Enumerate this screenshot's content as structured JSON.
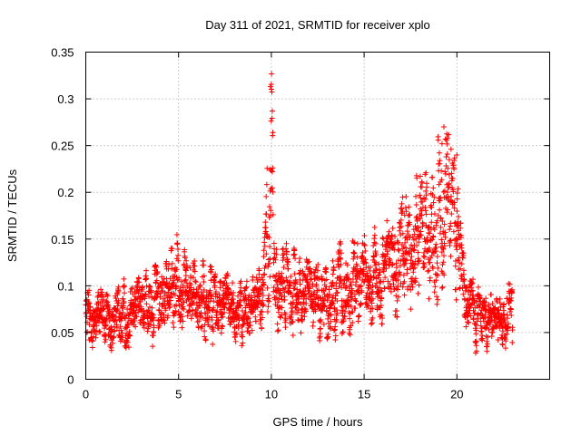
{
  "chart_data": {
    "type": "scatter",
    "title": "Day 311 of 2021, SRMTID for receiver xplo",
    "xlabel": "GPS time / hours",
    "ylabel": "SRMTID / TECUs",
    "xlim": [
      0,
      25
    ],
    "ylim": [
      0,
      0.35
    ],
    "x_ticks": [
      0,
      5,
      10,
      15,
      20
    ],
    "x_tick_labels": [
      "0",
      "5",
      "10",
      "15",
      "20"
    ],
    "y_ticks": [
      0,
      0.05,
      0.1,
      0.15,
      0.2,
      0.25,
      0.3,
      0.35
    ],
    "y_tick_labels": [
      "0",
      "0.05",
      "0.1",
      "0.15",
      "0.2",
      "0.25",
      "0.3",
      "0.35"
    ],
    "grid": true,
    "marker": "plus",
    "series": [
      {
        "name": "SRMTID",
        "color": "#ff0000",
        "x_range": [
          0,
          23
        ],
        "sample_interval_hours": 0.00833,
        "trend": [
          [
            0,
            0.068
          ],
          [
            1,
            0.062
          ],
          [
            2,
            0.07
          ],
          [
            3,
            0.072
          ],
          [
            4,
            0.085
          ],
          [
            4.5,
            0.11
          ],
          [
            5,
            0.1
          ],
          [
            6,
            0.085
          ],
          [
            7,
            0.078
          ],
          [
            8,
            0.072
          ],
          [
            9,
            0.078
          ],
          [
            9.6,
            0.09
          ],
          [
            9.85,
            0.17
          ],
          [
            10,
            0.25
          ],
          [
            10.2,
            0.12
          ],
          [
            11,
            0.095
          ],
          [
            12,
            0.09
          ],
          [
            13,
            0.09
          ],
          [
            14,
            0.095
          ],
          [
            15,
            0.1
          ],
          [
            16,
            0.115
          ],
          [
            17,
            0.135
          ],
          [
            18,
            0.15
          ],
          [
            19,
            0.17
          ],
          [
            19.5,
            0.21
          ],
          [
            20,
            0.15
          ],
          [
            20.5,
            0.085
          ],
          [
            21,
            0.065
          ],
          [
            22,
            0.065
          ],
          [
            23,
            0.068
          ]
        ],
        "notable_points": [
          {
            "x": 9.95,
            "y": 0.313
          },
          {
            "x": 10.05,
            "y": 0.287
          },
          {
            "x": 19.3,
            "y": 0.27
          },
          {
            "x": 19.5,
            "y": 0.258
          },
          {
            "x": 19.2,
            "y": 0.252
          },
          {
            "x": 20.0,
            "y": 0.24
          }
        ]
      }
    ]
  }
}
